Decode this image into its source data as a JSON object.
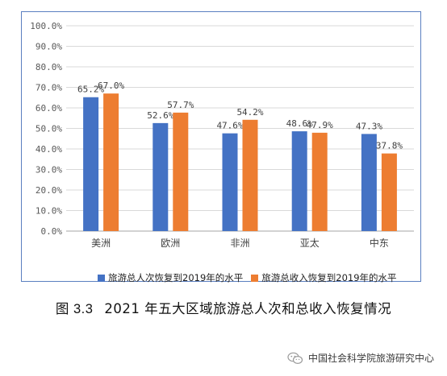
{
  "chart_data": {
    "type": "bar",
    "categories": [
      "美洲",
      "欧洲",
      "非洲",
      "亚太",
      "中东"
    ],
    "series": [
      {
        "name": "旅游总人次恢复到2019年的水平",
        "values": [
          65.2,
          52.6,
          47.6,
          48.6,
          47.3
        ],
        "color": "#4472c4"
      },
      {
        "name": "旅游总收入恢复到2019年的水平",
        "values": [
          67.0,
          57.7,
          54.2,
          47.9,
          37.8
        ],
        "color": "#ed7d31"
      }
    ],
    "data_labels": [
      [
        "65.2%",
        "52.6%",
        "47.6%",
        "48.6%",
        "47.3%"
      ],
      [
        "67.0%",
        "57.7%",
        "54.2%",
        "47.9%",
        "37.8%"
      ]
    ],
    "yticks": [
      "0.0%",
      "10.0%",
      "20.0%",
      "30.0%",
      "40.0%",
      "50.0%",
      "60.0%",
      "70.0%",
      "80.0%",
      "90.0%",
      "100.0%"
    ],
    "ylim": [
      0,
      100
    ],
    "grid": true,
    "legend_position": "bottom"
  },
  "caption": {
    "figure_number": "图 3.3",
    "text": "2021 年五大区域旅游总人次和总收入恢复情况"
  },
  "watermark": {
    "text": "中国社会科学院旅游研究中心",
    "icon": "wechat-icon"
  }
}
